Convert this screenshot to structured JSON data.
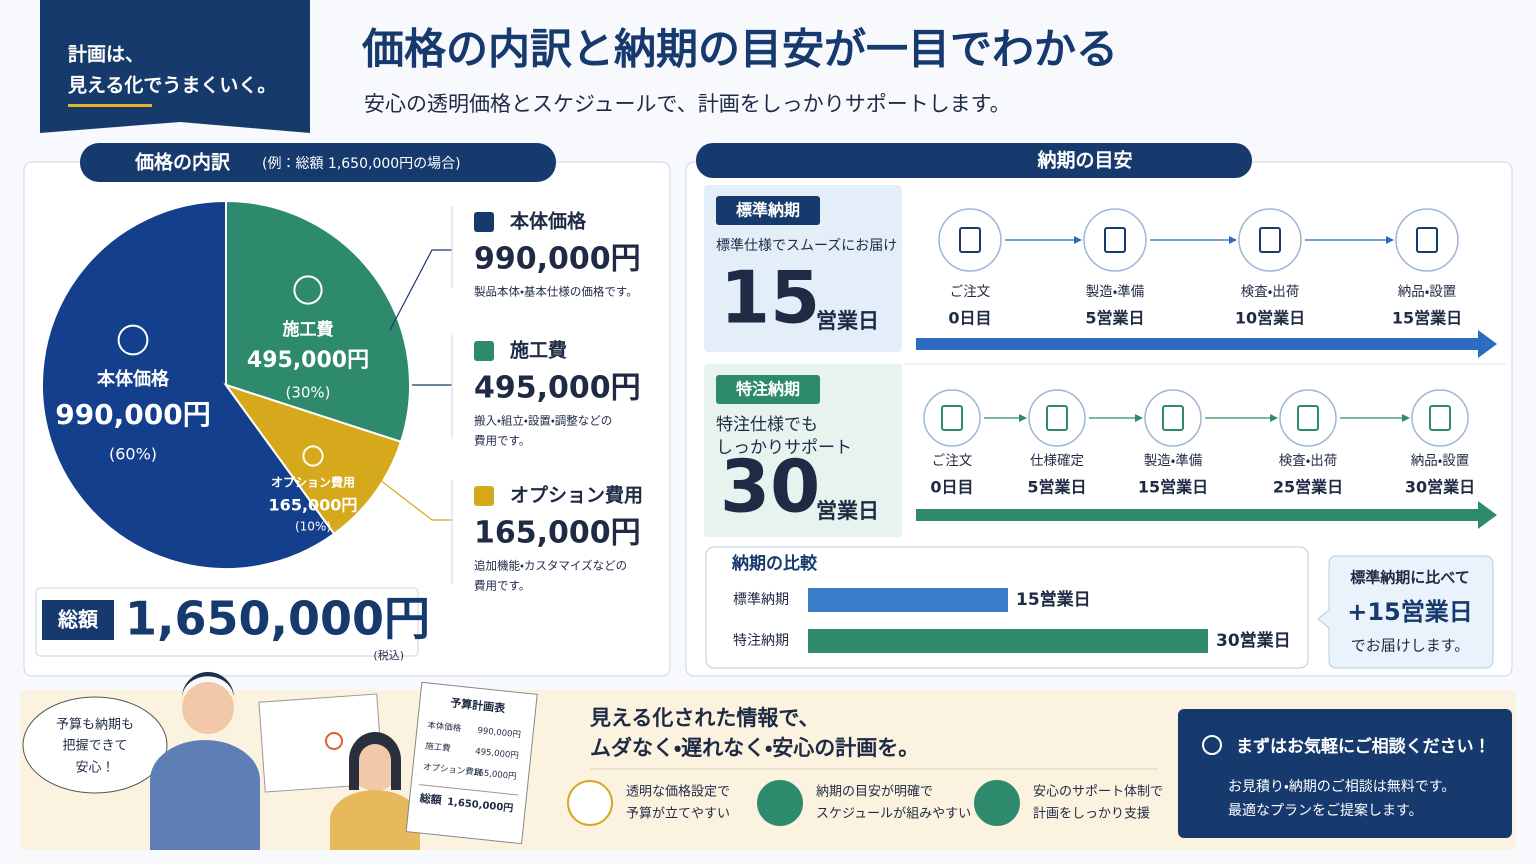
{
  "header": {
    "badge": [
      "計画は、",
      "見える化でうまくいく。"
    ],
    "title": "価格の内訳と納期の目安が一目でわかる",
    "subtitle": "安心の透明価格とスケジュールで、計画をしっかりサポートします。"
  },
  "price": {
    "heading": "価格の内訳",
    "note": "(例：総額 1,650,000円の場合)",
    "descriptions": [
      [
        "製品本体・基本仕様の価格です。"
      ],
      [
        "搬入・組立・設置・調整などの",
        "費用です。"
      ],
      [
        "追加機能・カスタマイズなどの",
        "費用です。"
      ]
    ],
    "total_label": "総額",
    "total": "1,650,000円",
    "tax": "(税込)"
  },
  "chart_data": [
    {
      "type": "pie",
      "categories": [
        "本体価格",
        "施工費",
        "オプション費用"
      ],
      "values": [
        990000,
        495000,
        165000
      ],
      "value_labels": [
        "990,000円",
        "495,000円",
        "165,000円"
      ],
      "percent_labels": [
        "(60%)",
        "(30%)",
        "(10%)"
      ],
      "colors": [
        "#143f8c",
        "#2e8a6d",
        "#d6a81c"
      ]
    },
    {
      "type": "bar",
      "orientation": "horizontal",
      "title": "納期の比較",
      "categories": [
        "標準納期",
        "特注納期"
      ],
      "values": [
        15,
        30
      ],
      "value_labels": [
        "15営業日",
        "30営業日"
      ],
      "colors": [
        "#3a7cc8",
        "#2e8a6d"
      ]
    }
  ],
  "delivery": {
    "heading": "納期の目安",
    "plans": [
      {
        "tag": "標準納期",
        "lead": [
          "標準仕様でスムーズにお届け"
        ],
        "days": 15,
        "unit": "営業日",
        "color": "#2e6cc0",
        "steps": [
          {
            "label": "ご注文",
            "day": "0日目"
          },
          {
            "label": "製造・準備",
            "day": "5営業日"
          },
          {
            "label": "検査・出荷",
            "day": "10営業日"
          },
          {
            "label": "納品・設置",
            "day": "15営業日"
          }
        ]
      },
      {
        "tag": "特注納期",
        "lead": [
          "特注仕様でも",
          "しっかりサポート"
        ],
        "days": 30,
        "unit": "営業日",
        "color": "#2e8a6d",
        "steps": [
          {
            "label": "ご注文",
            "day": "0日目"
          },
          {
            "label": "仕様確定",
            "day": "5営業日"
          },
          {
            "label": "製造・準備",
            "day": "15営業日"
          },
          {
            "label": "検査・出荷",
            "day": "25営業日"
          },
          {
            "label": "納品・設置",
            "day": "30営業日"
          }
        ]
      }
    ],
    "callout": [
      "標準納期に比べて",
      "+15営業日",
      "でお届けします。"
    ]
  },
  "footer": {
    "bubble": [
      "予算も納期も",
      "把握できて",
      "安心！"
    ],
    "sheet": {
      "title": "予算計画表",
      "rows": [
        [
          "本体価格",
          "990,000円"
        ],
        [
          "施工費",
          "495,000円"
        ],
        [
          "オプション費用",
          "165,000円"
        ]
      ],
      "total": [
        "総額",
        "1,650,000円"
      ]
    },
    "message": [
      "見える化された情報で、",
      "ムダなく・遅れなく・安心の計画を。"
    ],
    "features": [
      [
        "透明な価格設定で",
        "予算が立てやすい"
      ],
      [
        "納期の目安が明確で",
        "スケジュールが組みやすい"
      ],
      [
        "安心のサポート体制で",
        "計画をしっかり支援"
      ]
    ],
    "cta": {
      "title": "まずはお気軽にご相談ください！",
      "lines": [
        "お見積り・納期のご相談は無料です。",
        "最適なプランをご提案します。"
      ]
    }
  }
}
